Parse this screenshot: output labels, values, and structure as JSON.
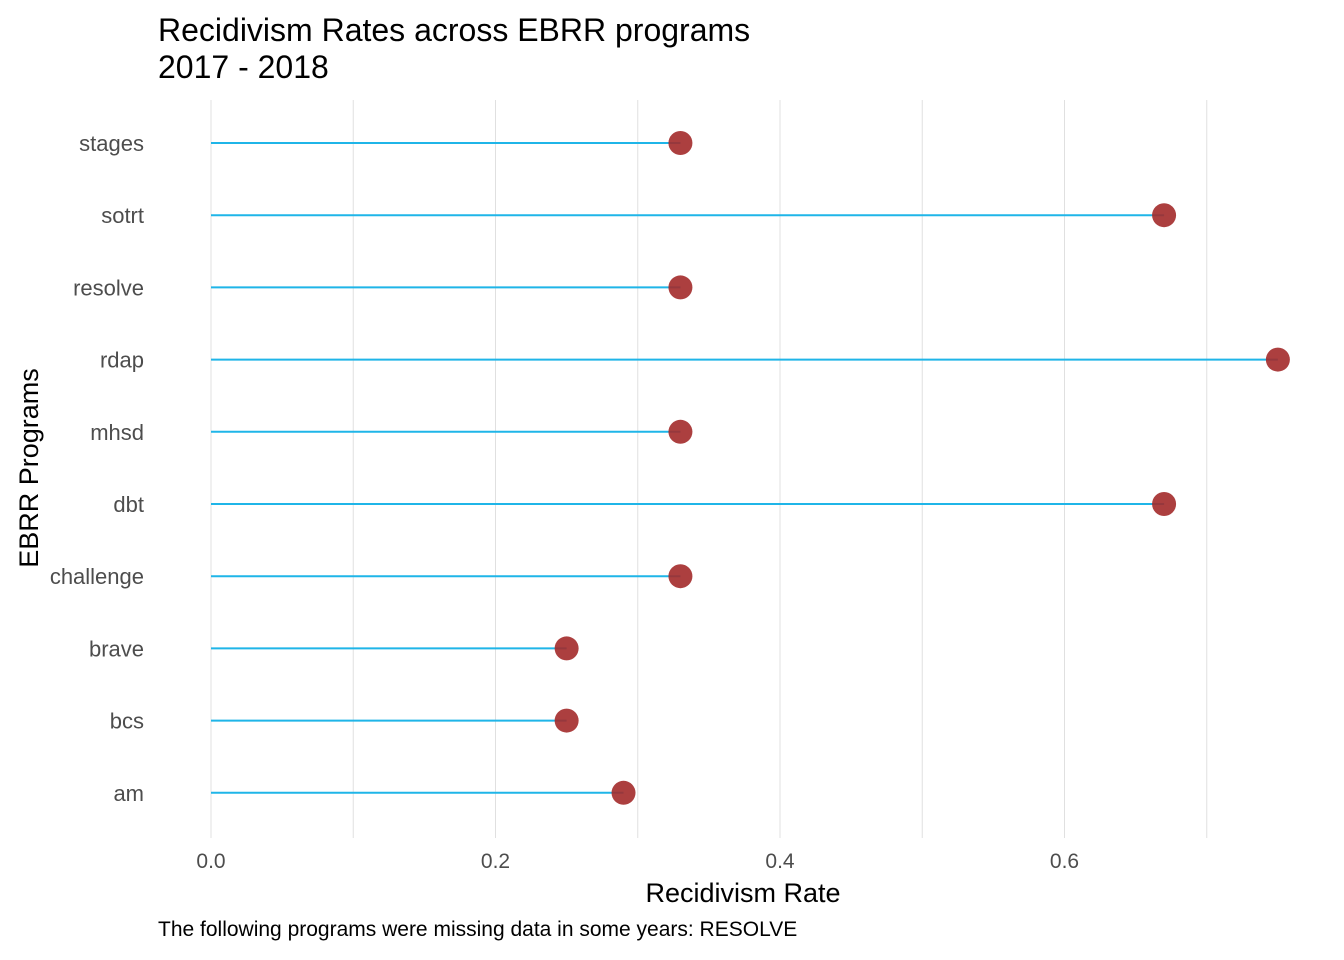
{
  "chart_data": {
    "type": "lollipop",
    "title": "Recidivism Rates across EBRR programs",
    "subtitle": "2017 - 2018",
    "xlabel": "Recidivism Rate",
    "ylabel": "EBRR Programs",
    "caption": "The following programs were missing data in some years: RESOLVE",
    "xlim": [
      0,
      0.75
    ],
    "x_ticks": [
      0.0,
      0.2,
      0.4,
      0.6
    ],
    "x_tick_labels": [
      "0.0",
      "0.2",
      "0.4",
      "0.6"
    ],
    "grid": true,
    "categories": [
      "am",
      "bcs",
      "brave",
      "challenge",
      "dbt",
      "mhsd",
      "rdap",
      "resolve",
      "sotrt",
      "stages"
    ],
    "values": [
      0.29,
      0.25,
      0.25,
      0.33,
      0.67,
      0.33,
      0.75,
      0.33,
      0.67,
      0.33
    ],
    "colors": {
      "stem": "#1fb5e8",
      "point": "#a32a2a",
      "grid": "#e0e0e0",
      "tick_text": "#4d4d4d"
    }
  }
}
